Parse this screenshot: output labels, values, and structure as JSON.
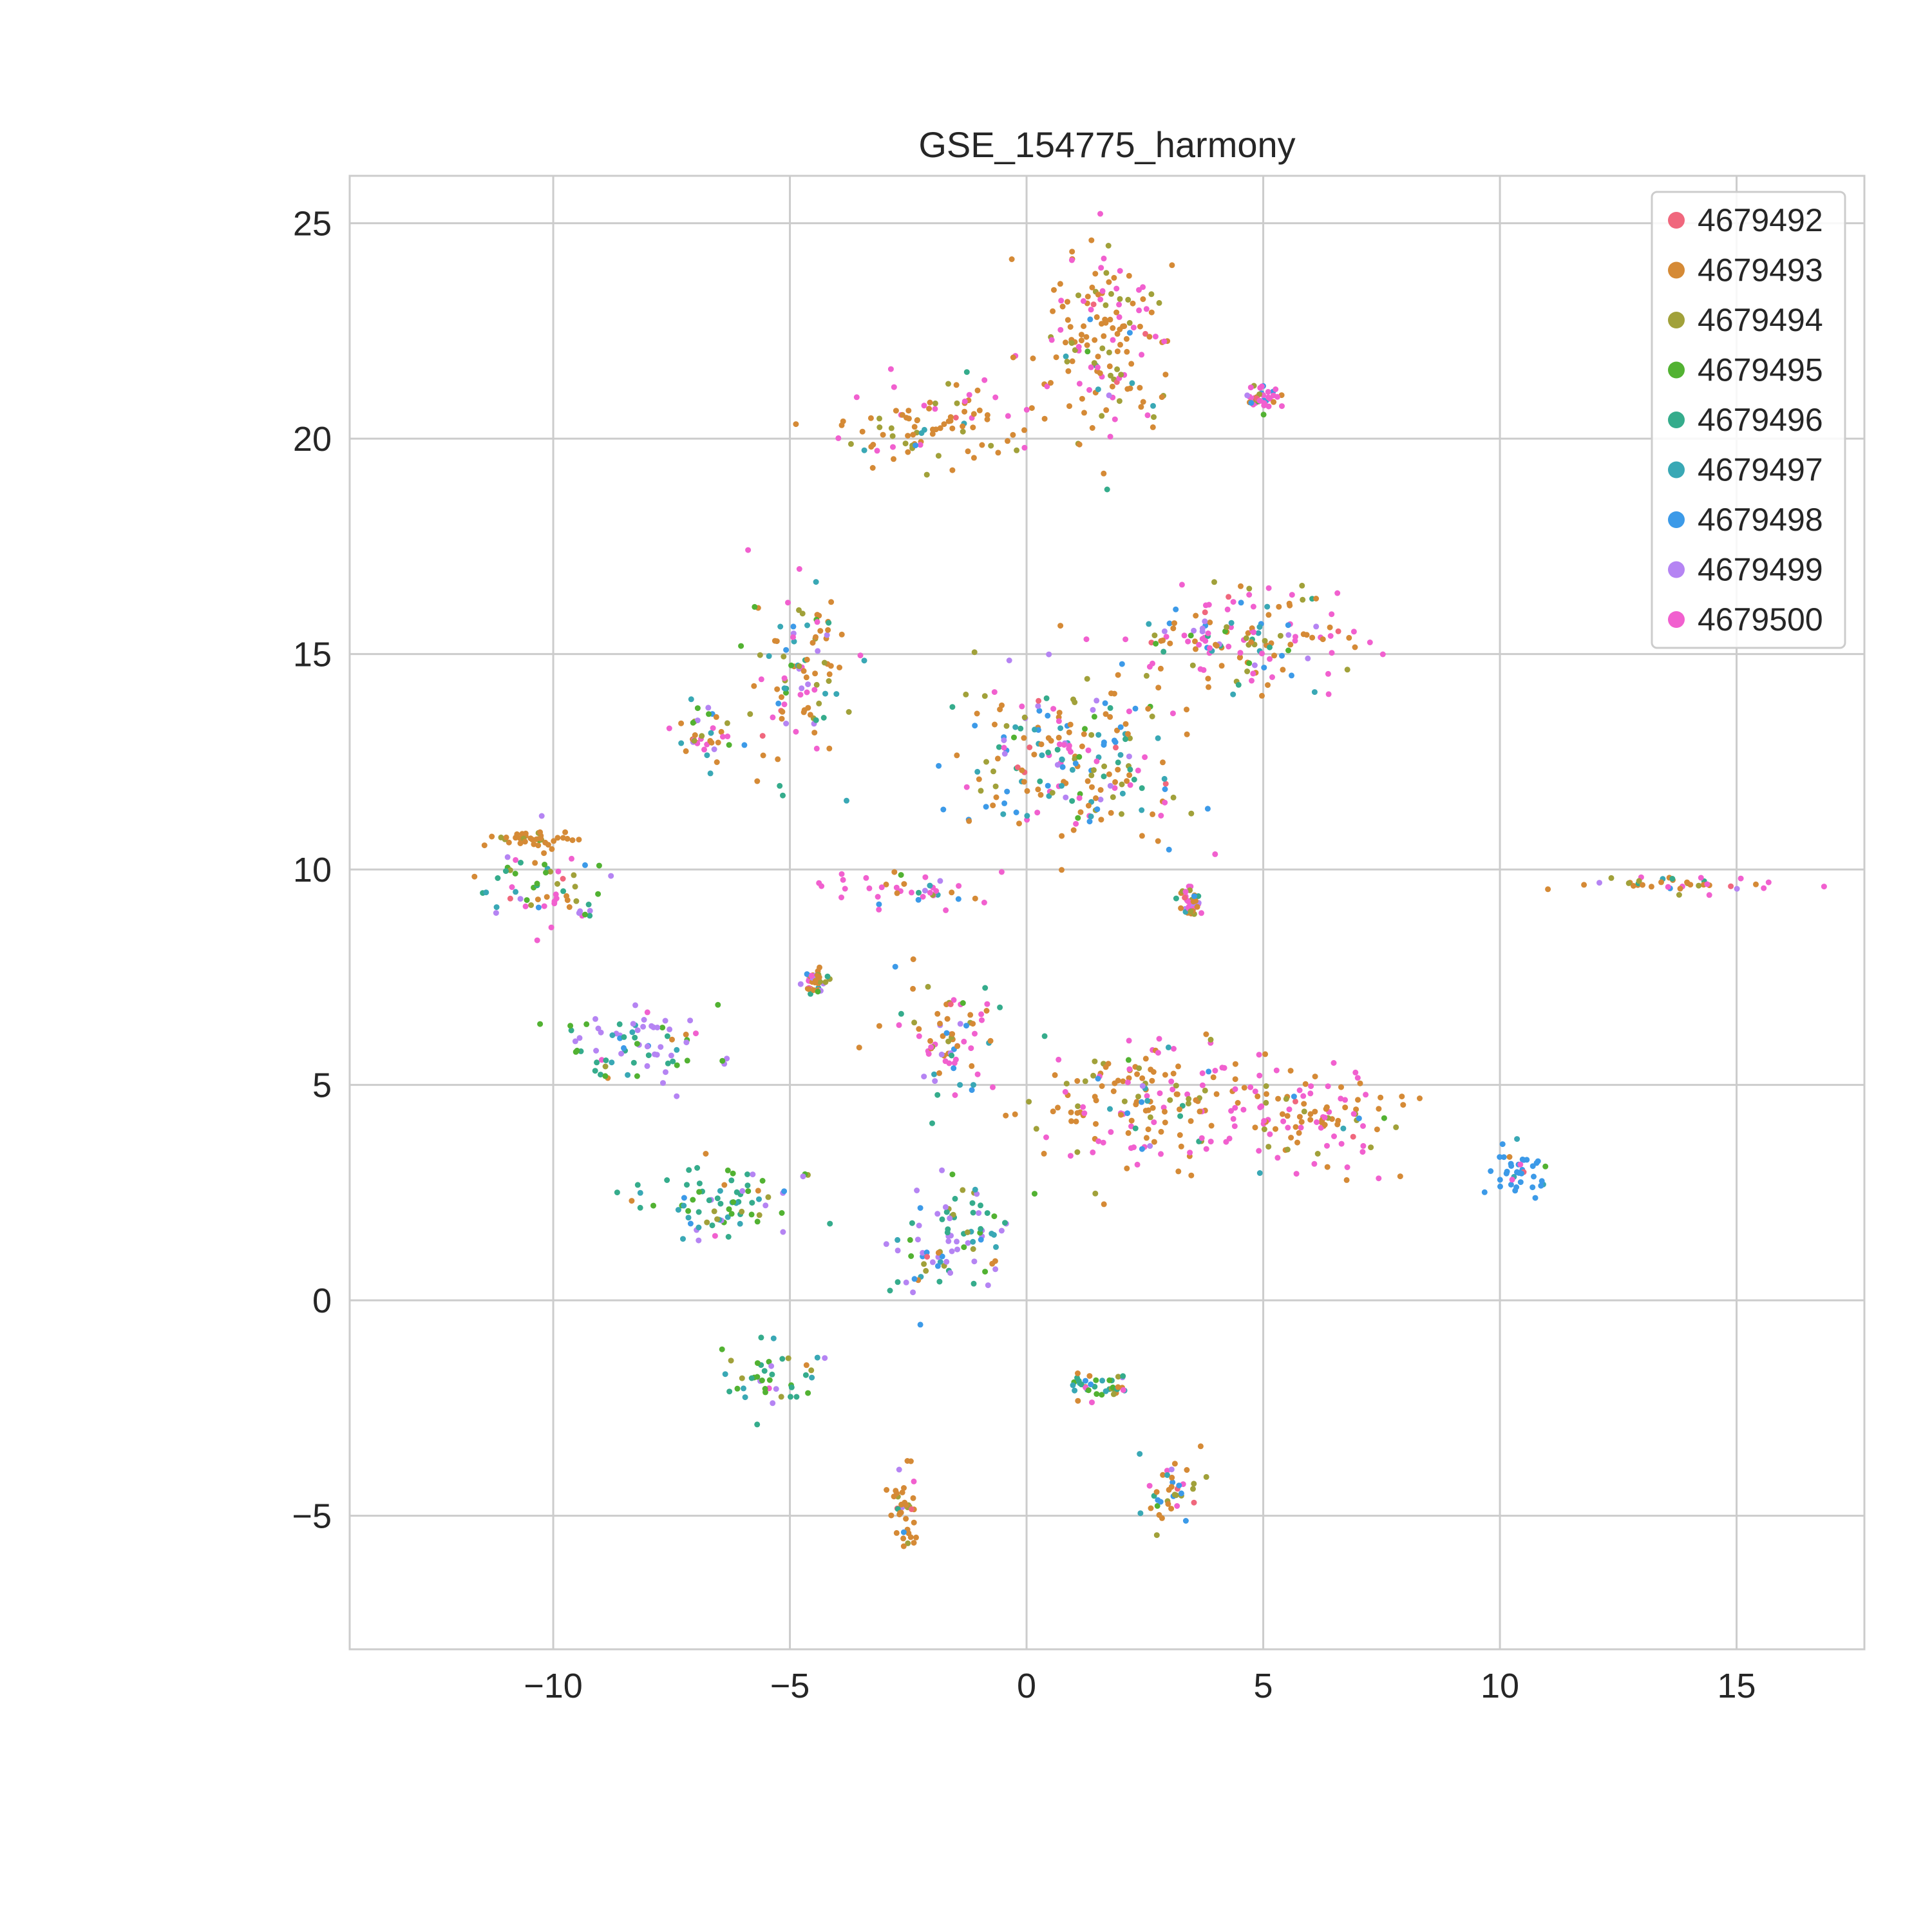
{
  "chart_data": {
    "type": "scatter",
    "title": "GSE_154775_harmony",
    "xlabel": "",
    "ylabel": "",
    "xlim": [
      -14.3,
      17.7
    ],
    "ylim": [
      -8.1,
      26.1
    ],
    "xticks": [
      -10,
      -5,
      0,
      5,
      10,
      15
    ],
    "yticks": [
      -5,
      0,
      5,
      10,
      15,
      20,
      25
    ],
    "xtick_labels": [
      "−10",
      "−5",
      "0",
      "5",
      "10",
      "15"
    ],
    "ytick_labels": [
      "−5",
      "0",
      "5",
      "10",
      "15",
      "20",
      "25"
    ],
    "grid": true,
    "legend_position": "top-right",
    "series": [
      {
        "name": "4679492",
        "color": "#f0677d"
      },
      {
        "name": "4679493",
        "color": "#d58a36"
      },
      {
        "name": "4679494",
        "color": "#a1a13a"
      },
      {
        "name": "4679495",
        "color": "#52b232"
      },
      {
        "name": "4679496",
        "color": "#35ac8c"
      },
      {
        "name": "4679497",
        "color": "#39a8b5"
      },
      {
        "name": "4679498",
        "color": "#3c9ae8"
      },
      {
        "name": "4679499",
        "color": "#b584f3"
      },
      {
        "name": "4679500",
        "color": "#f160cf"
      }
    ],
    "clusters": [
      {
        "center": [
          1.5,
          22.3
        ],
        "spread": [
          1.3,
          1.8
        ],
        "weights": [
          0.02,
          0.55,
          0.15,
          0.01,
          0.01,
          0.01,
          0.01,
          0.01,
          0.23
        ]
      },
      {
        "center": [
          -1.9,
          20.3
        ],
        "spread": [
          1.7,
          0.8
        ],
        "weights": [
          0.02,
          0.55,
          0.15,
          0.01,
          0.02,
          0.02,
          0.02,
          0.01,
          0.2
        ]
      },
      {
        "center": [
          -4.8,
          14.6
        ],
        "spread": [
          0.8,
          1.8
        ],
        "weights": [
          0.03,
          0.35,
          0.1,
          0.05,
          0.07,
          0.08,
          0.08,
          0.07,
          0.17
        ]
      },
      {
        "center": [
          -6.8,
          13.2
        ],
        "spread": [
          0.7,
          0.8
        ],
        "weights": [
          0.03,
          0.4,
          0.08,
          0.05,
          0.06,
          0.06,
          0.06,
          0.06,
          0.2
        ]
      },
      {
        "center": [
          1.0,
          12.5
        ],
        "spread": [
          2.0,
          1.6
        ],
        "weights": [
          0.02,
          0.3,
          0.12,
          0.05,
          0.08,
          0.1,
          0.13,
          0.05,
          0.15
        ]
      },
      {
        "center": [
          4.6,
          15.4
        ],
        "spread": [
          2.2,
          1.0
        ],
        "weights": [
          0.02,
          0.33,
          0.12,
          0.03,
          0.05,
          0.05,
          0.1,
          0.05,
          0.25
        ]
      },
      {
        "center": [
          -10.3,
          9.6
        ],
        "spread": [
          1.1,
          0.8
        ],
        "weights": [
          0.02,
          0.1,
          0.06,
          0.12,
          0.15,
          0.12,
          0.06,
          0.12,
          0.25
        ]
      },
      {
        "center": [
          -10.3,
          10.7
        ],
        "spread": [
          0.9,
          0.15
        ],
        "weights": [
          0.02,
          0.7,
          0.2,
          0.01,
          0.01,
          0.01,
          0.01,
          0.01,
          0.03
        ]
      },
      {
        "center": [
          -8.2,
          6.0
        ],
        "spread": [
          1.4,
          0.8
        ],
        "weights": [
          0.01,
          0.03,
          0.05,
          0.2,
          0.2,
          0.12,
          0.06,
          0.3,
          0.03
        ]
      },
      {
        "center": [
          -1.6,
          6.0
        ],
        "spread": [
          1.1,
          1.0
        ],
        "weights": [
          0.02,
          0.28,
          0.1,
          0.02,
          0.04,
          0.05,
          0.08,
          0.05,
          0.36
        ]
      },
      {
        "center": [
          2.8,
          4.6
        ],
        "spread": [
          2.2,
          1.2
        ],
        "weights": [
          0.02,
          0.45,
          0.1,
          0.01,
          0.02,
          0.02,
          0.02,
          0.02,
          0.34
        ]
      },
      {
        "center": [
          6.2,
          4.2
        ],
        "spread": [
          1.4,
          1.0
        ],
        "weights": [
          0.02,
          0.45,
          0.1,
          0.01,
          0.01,
          0.01,
          0.02,
          0.01,
          0.37
        ]
      },
      {
        "center": [
          -6.5,
          2.3
        ],
        "spread": [
          1.5,
          0.75
        ],
        "weights": [
          0.01,
          0.03,
          0.06,
          0.28,
          0.28,
          0.16,
          0.06,
          0.1,
          0.02
        ]
      },
      {
        "center": [
          -1.5,
          1.5
        ],
        "spread": [
          1.2,
          1.1
        ],
        "weights": [
          0.01,
          0.04,
          0.06,
          0.12,
          0.22,
          0.12,
          0.05,
          0.35,
          0.03
        ]
      },
      {
        "center": [
          -5.5,
          -1.8
        ],
        "spread": [
          1.0,
          0.6
        ],
        "weights": [
          0.01,
          0.05,
          0.12,
          0.25,
          0.25,
          0.12,
          0.05,
          0.12,
          0.03
        ]
      },
      {
        "center": [
          -2.6,
          -4.8
        ],
        "spread": [
          0.3,
          0.8
        ],
        "weights": [
          0.02,
          0.65,
          0.18,
          0.02,
          0.02,
          0.02,
          0.02,
          0.04,
          0.03
        ]
      },
      {
        "center": [
          3.0,
          -4.5
        ],
        "spread": [
          0.8,
          0.7
        ],
        "weights": [
          0.03,
          0.32,
          0.12,
          0.05,
          0.07,
          0.08,
          0.08,
          0.05,
          0.2
        ]
      },
      {
        "center": [
          14.0,
          9.65
        ],
        "spread": [
          2.2,
          0.15
        ],
        "weights": [
          0.02,
          0.3,
          0.12,
          0.02,
          0.06,
          0.08,
          0.1,
          0.02,
          0.28
        ]
      },
      {
        "center": [
          10.4,
          3.0
        ],
        "spread": [
          0.5,
          0.4
        ],
        "weights": [
          0.01,
          0.02,
          0.02,
          0.01,
          0.02,
          0.1,
          0.8,
          0.01,
          0.01
        ]
      },
      {
        "center": [
          -4.5,
          7.4
        ],
        "spread": [
          0.2,
          0.3
        ],
        "weights": [
          0.03,
          0.55,
          0.2,
          0.02,
          0.02,
          0.02,
          0.02,
          0.04,
          0.1
        ]
      },
      {
        "center": [
          -2.5,
          9.5
        ],
        "spread": [
          1.3,
          0.4
        ],
        "weights": [
          0.03,
          0.15,
          0.05,
          0.02,
          0.03,
          0.03,
          0.04,
          0.05,
          0.6
        ]
      },
      {
        "center": [
          5.0,
          20.9
        ],
        "spread": [
          0.3,
          0.3
        ],
        "weights": [
          0.03,
          0.1,
          0.05,
          0.02,
          0.05,
          0.1,
          0.05,
          0.1,
          0.5
        ]
      },
      {
        "center": [
          1.5,
          -2.0
        ],
        "spread": [
          0.6,
          0.3
        ],
        "weights": [
          0.02,
          0.3,
          0.1,
          0.15,
          0.15,
          0.1,
          0.05,
          0.05,
          0.08
        ]
      },
      {
        "center": [
          3.5,
          9.2
        ],
        "spread": [
          0.2,
          0.3
        ],
        "weights": [
          0.03,
          0.25,
          0.1,
          0.02,
          0.03,
          0.03,
          0.04,
          0.05,
          0.45
        ]
      }
    ]
  }
}
